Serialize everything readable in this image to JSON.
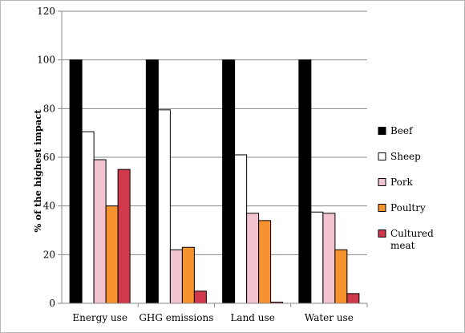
{
  "chart_data": {
    "type": "bar",
    "title": "",
    "xlabel": "",
    "ylabel": "% of the highest impact",
    "ylim": [
      0,
      120
    ],
    "yticks": [
      0,
      20,
      40,
      60,
      80,
      100,
      120
    ],
    "grid": "horizontal",
    "legend_position": "right",
    "categories": [
      "Energy use",
      "GHG emissions",
      "Land use",
      "Water use"
    ],
    "series": [
      {
        "name": "Beef",
        "color": "#000000",
        "values": [
          100,
          100,
          100,
          100
        ]
      },
      {
        "name": "Sheep",
        "color": "#ffffff",
        "values": [
          70.5,
          79.5,
          61,
          37.5
        ]
      },
      {
        "name": "Pork",
        "color": "#f2c4cf",
        "values": [
          59,
          22,
          37,
          37
        ]
      },
      {
        "name": "Poultry",
        "color": "#f7932e",
        "values": [
          40,
          23,
          34,
          22
        ]
      },
      {
        "name": "Cultured meat",
        "color": "#d0384c",
        "legend_lines": [
          "Cultured",
          "meat"
        ],
        "values": [
          55,
          5,
          0.5,
          4
        ]
      }
    ]
  }
}
